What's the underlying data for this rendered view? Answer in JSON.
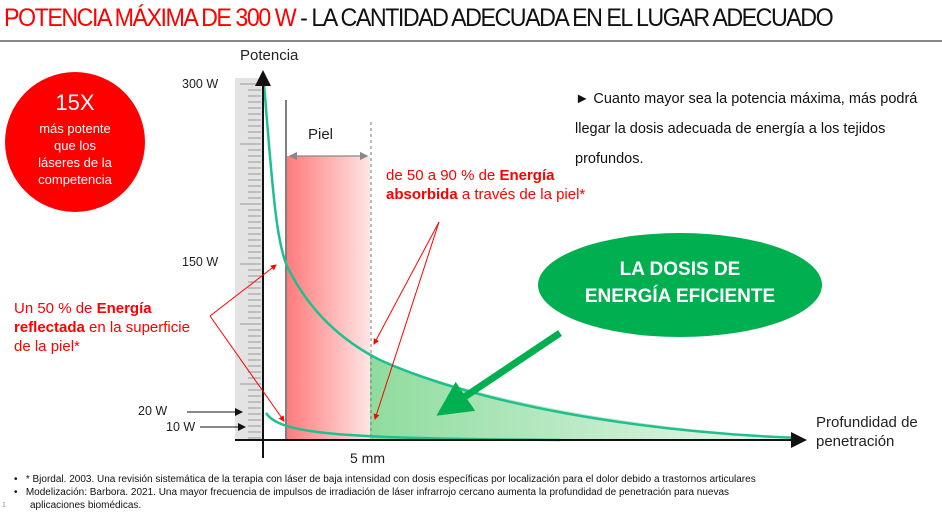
{
  "title": {
    "red_part": "POTENCIA MÁXIMA DE 300 W",
    "black_part": " - LA CANTIDAD ADECUADA EN EL LUGAR ADECUADO"
  },
  "badge": {
    "big": "15X",
    "lines": [
      "más potente",
      "que los",
      "láseres de la",
      "competencia"
    ],
    "color": "#ff0000"
  },
  "diagram": {
    "y_axis_label": "Potencia",
    "x_axis_label_line1": "Profundidad de",
    "x_axis_label_line2": "penetración",
    "y_ticks": [
      "300 W",
      "150 W",
      "20 W",
      "10 W"
    ],
    "x_tick": "5 mm",
    "skin_label": "Piel",
    "absorbed_note": {
      "pre": "de 50 a 90 % de ",
      "bold": "Energía",
      "bold2": "absorbida",
      "post": " a través de la piel*"
    },
    "reflected_note": {
      "pre": "Un 50 % de ",
      "bold": "Energía",
      "bold2": "reflectada",
      "mid": " en la superficie",
      "last": "de la piel*"
    },
    "oval": {
      "line1": "LA DOSIS DE",
      "line2": "ENERGÍA EFICIENTE",
      "color": "#00b050"
    },
    "curve_color": "#1fbf8f"
  },
  "bullet_text": "► Cuanto mayor sea la potencia máxima, más podrá llegar la dosis adecuada de energía a los tejidos profundos.",
  "footnotes": [
    "* Bjordal. 2003. Una revisión sistemática de la terapia con láser de baja intensidad con dosis específicas por localización para el dolor debido a trastornos articulares",
    "Modelización: Barbora. 2021. Una mayor frecuencia de impulsos de irradiación de láser infrarrojo cercano aumenta la profundidad de penetración para nuevas",
    "aplicaciones biomédicas."
  ],
  "slide_number": "1"
}
